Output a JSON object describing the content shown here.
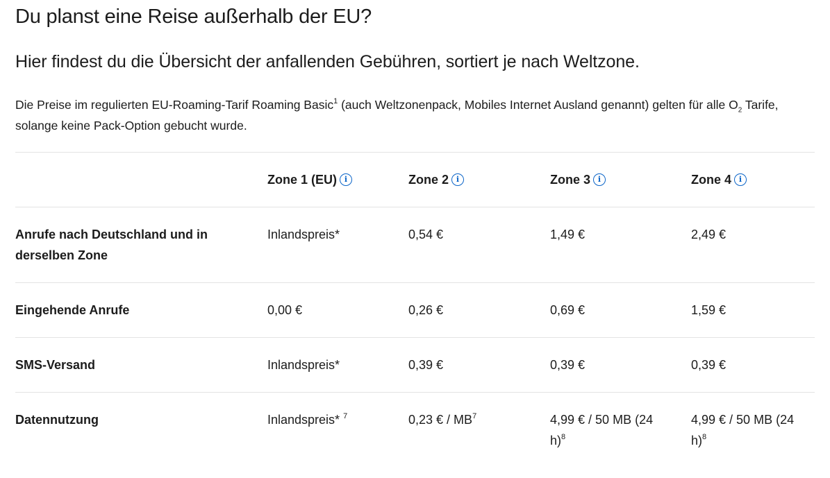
{
  "heading": "Du planst eine Reise außerhalb der EU?",
  "subheading": "Hier findest du die Übersicht der anfallenden Gebühren, sortiert je nach Weltzone.",
  "intro": {
    "part1": "Die Preise im regulierten EU-Roaming-Tarif Roaming Basic",
    "sup1": "1",
    "part2": " (auch Weltzonenpack, Mobiles Internet Ausland genannt) gelten für alle O",
    "sub": "2",
    "part3": " Tarife, solange keine Pack-Option gebucht wurde."
  },
  "table": {
    "zones": [
      {
        "label": "Zone 1 (EU)",
        "icon": "info-icon"
      },
      {
        "label": "Zone 2",
        "icon": "info-icon"
      },
      {
        "label": "Zone 3",
        "icon": "info-icon"
      },
      {
        "label": "Zone 4",
        "icon": "info-icon"
      }
    ],
    "rows": [
      {
        "label": "Anrufe nach Deutschland und in derselben Zone",
        "cells": [
          {
            "text": "Inlandspreis*"
          },
          {
            "text": "0,54 €"
          },
          {
            "text": "1,49 €"
          },
          {
            "text": "2,49 €"
          }
        ]
      },
      {
        "label": "Eingehende Anrufe",
        "cells": [
          {
            "text": "0,00 €"
          },
          {
            "text": "0,26 €"
          },
          {
            "text": "0,69 €"
          },
          {
            "text": "1,59 €"
          }
        ]
      },
      {
        "label": "SMS-Versand",
        "cells": [
          {
            "text": "Inlandspreis*"
          },
          {
            "text": "0,39 €"
          },
          {
            "text": "0,39 €"
          },
          {
            "text": "0,39 €"
          }
        ]
      },
      {
        "label": "Datennutzung",
        "cells": [
          {
            "text": "Inlandspreis* ",
            "sup": "7"
          },
          {
            "text": "0,23 € / MB",
            "sup": "7"
          },
          {
            "text": "4,99 € / 50 MB (24 h)",
            "sup": "8"
          },
          {
            "text": "4,99 € / 50 MB (24 h)",
            "sup": "8"
          }
        ]
      }
    ]
  }
}
